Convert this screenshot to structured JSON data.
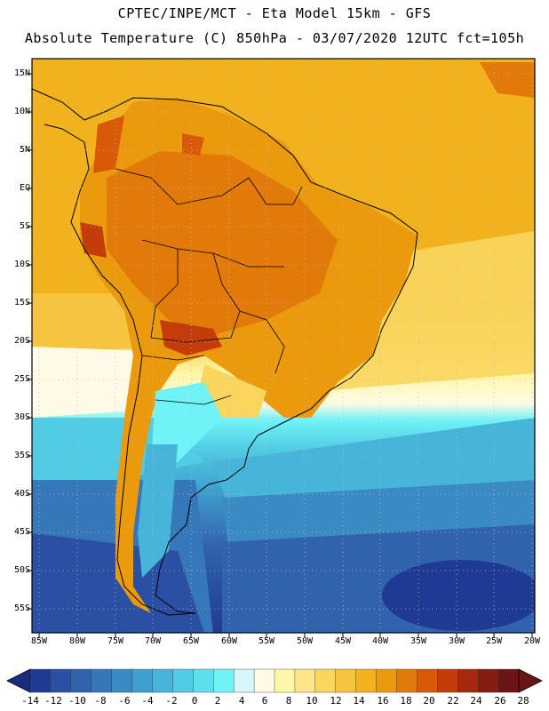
{
  "header": {
    "line1": "CPTEC/INPE/MCT -  Eta Model 15km - GFS",
    "line2": "Absolute Temperature (C) 850hPa - 03/07/2020 12UTC fct=105h"
  },
  "axes": {
    "lat_labels": [
      "15N",
      "10N",
      "5N",
      "EQ",
      "5S",
      "10S",
      "15S",
      "20S",
      "25S",
      "30S",
      "35S",
      "40S",
      "45S",
      "50S",
      "55S"
    ],
    "lon_labels": [
      "85W",
      "80W",
      "75W",
      "70W",
      "65W",
      "60W",
      "55W",
      "50W",
      "45W",
      "40W",
      "35W",
      "30W",
      "25W",
      "20W"
    ]
  },
  "colorbar": {
    "labels": [
      "-14",
      "-12",
      "-10",
      "-8",
      "-6",
      "-4",
      "-2",
      "0",
      "2",
      "4",
      "6",
      "8",
      "10",
      "12",
      "14",
      "16",
      "18",
      "20",
      "22",
      "24",
      "26",
      "28"
    ],
    "colors": [
      "#1f3a93",
      "#2b4fa3",
      "#3163ad",
      "#3577b8",
      "#3a8bc4",
      "#3fa0cf",
      "#47b5da",
      "#52cbe4",
      "#5fdfee",
      "#6ff3f7",
      "#d6f7f9",
      "#fffbe6",
      "#fff7a8",
      "#fde68a",
      "#fad65e",
      "#f7c440",
      "#f2b21e",
      "#ea9a0c",
      "#e27a09",
      "#d85a08",
      "#c43c09",
      "#a7280d",
      "#851c12",
      "#6b1416"
    ]
  }
}
